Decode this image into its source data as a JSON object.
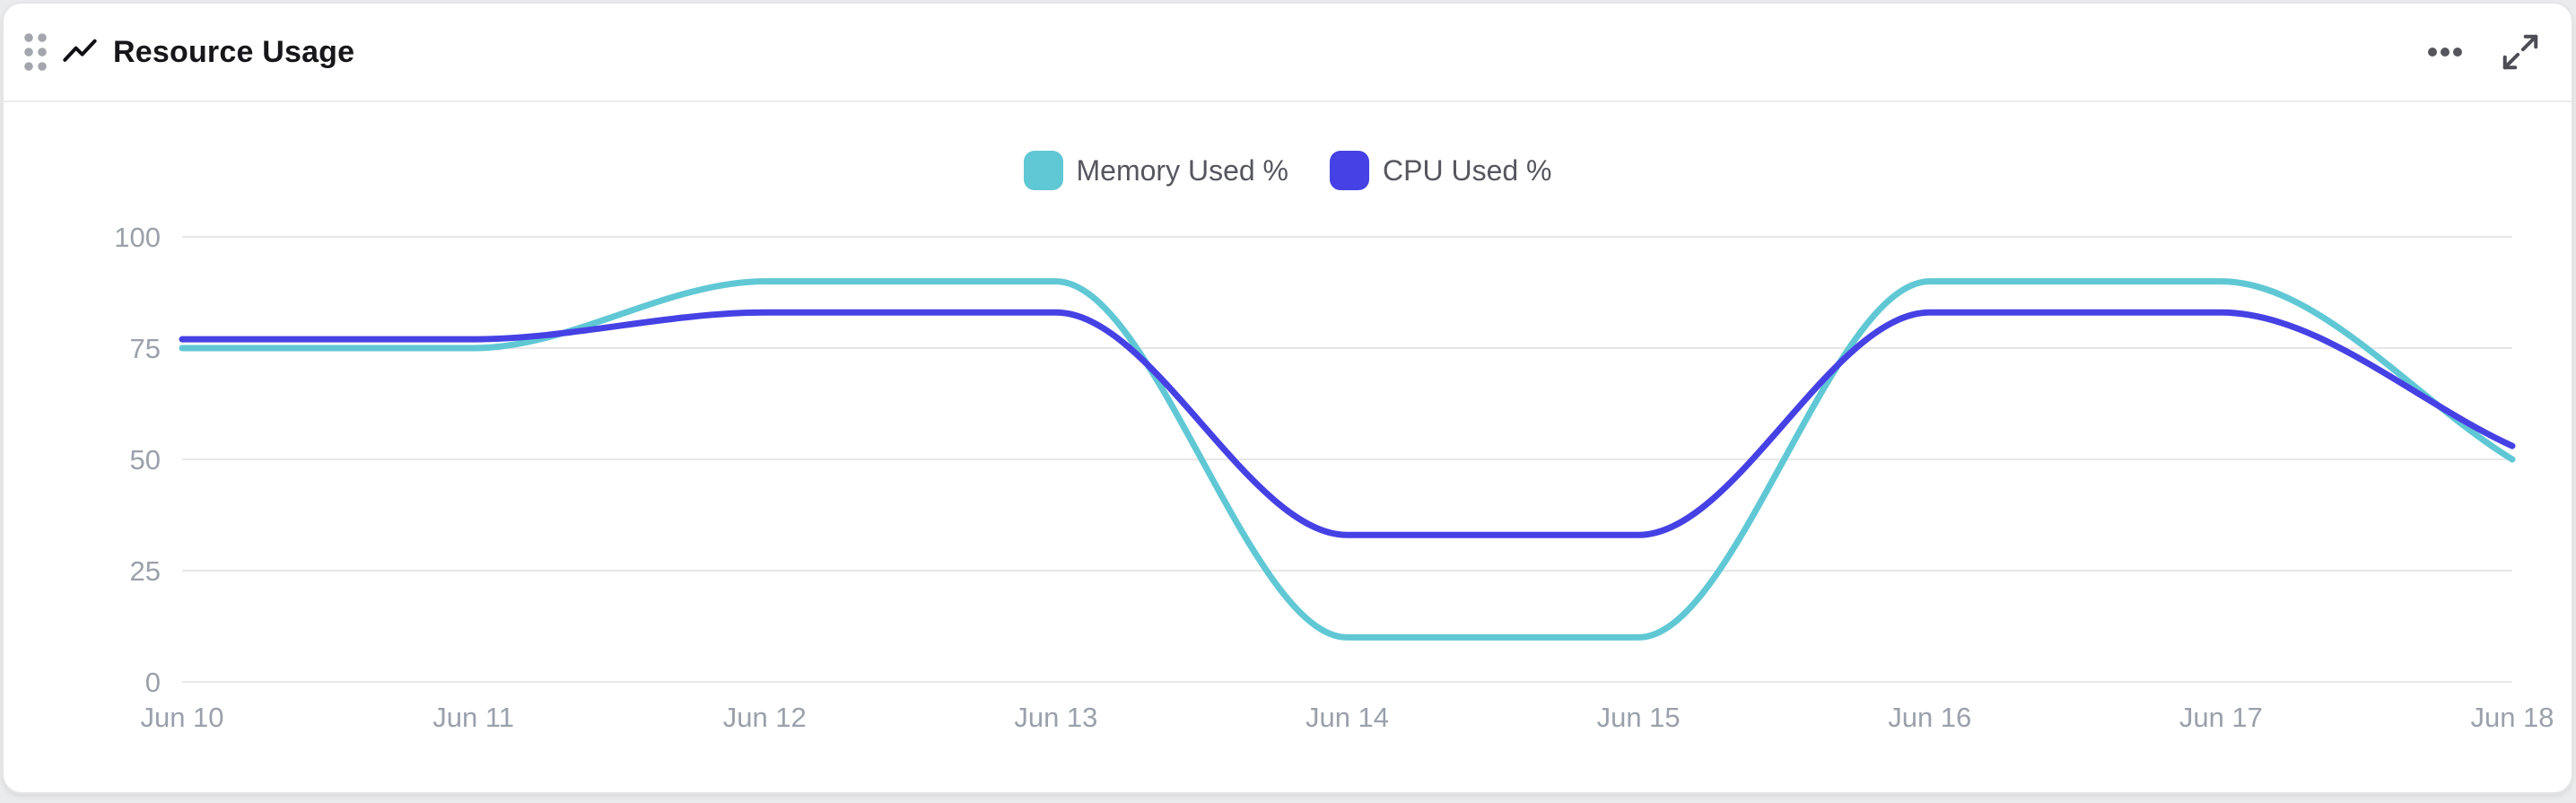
{
  "card": {
    "title": "Resource Usage"
  },
  "header": {
    "icons": {
      "drag_handle": "drag-handle-icon",
      "title_glyph": "trend-line-icon",
      "more": "more-options-icon",
      "expand": "expand-icon"
    }
  },
  "colors": {
    "memory": "#60c8d4",
    "cpu": "#4641e4",
    "gridline": "#e7e7ea",
    "axis_text": "#9aa1ab",
    "legend_text": "#55565e",
    "card_border": "#e5e5e8"
  },
  "chart_data": {
    "type": "line",
    "curve": "monotone",
    "x": [
      "Jun 10",
      "Jun 11",
      "Jun 12",
      "Jun 13",
      "Jun 14",
      "Jun 15",
      "Jun 16",
      "Jun 17",
      "Jun 18"
    ],
    "series": [
      {
        "name": "Memory Used %",
        "color": "#60c8d4",
        "values": [
          75,
          75,
          90,
          90,
          10,
          10,
          90,
          90,
          50
        ]
      },
      {
        "name": "CPU Used %",
        "color": "#4641e4",
        "values": [
          77,
          77,
          83,
          83,
          33,
          33,
          83,
          83,
          53
        ]
      }
    ],
    "ylim": [
      0,
      100
    ],
    "yticks": [
      0,
      25,
      50,
      75,
      100
    ],
    "grid": "horizontal",
    "legend_position": "top"
  }
}
